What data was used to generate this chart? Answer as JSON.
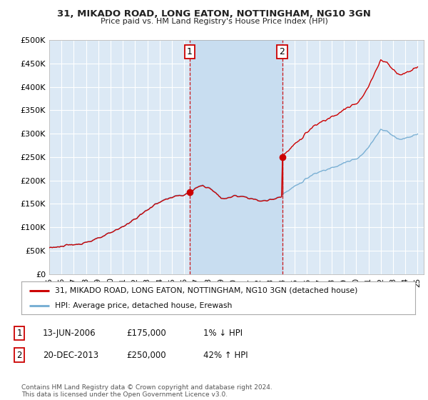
{
  "title": "31, MIKADO ROAD, LONG EATON, NOTTINGHAM, NG10 3GN",
  "subtitle": "Price paid vs. HM Land Registry's House Price Index (HPI)",
  "ylabel_ticks": [
    "£0",
    "£50K",
    "£100K",
    "£150K",
    "£200K",
    "£250K",
    "£300K",
    "£350K",
    "£400K",
    "£450K",
    "£500K"
  ],
  "ytick_values": [
    0,
    50000,
    100000,
    150000,
    200000,
    250000,
    300000,
    350000,
    400000,
    450000,
    500000
  ],
  "ylim": [
    0,
    500000
  ],
  "xlim_start": 1995.0,
  "xlim_end": 2025.5,
  "background_color": "#ffffff",
  "plot_bg_color": "#dce9f5",
  "shade_color": "#c8ddf0",
  "grid_color": "#ffffff",
  "hpi_color": "#7ab0d4",
  "property_color": "#cc0000",
  "sale1_x": 2006.45,
  "sale1_y": 175000,
  "sale2_x": 2013.97,
  "sale2_y": 250000,
  "legend_property": "31, MIKADO ROAD, LONG EATON, NOTTINGHAM, NG10 3GN (detached house)",
  "legend_hpi": "HPI: Average price, detached house, Erewash",
  "annotation1_label": "1",
  "annotation2_label": "2",
  "table_row1": [
    "1",
    "13-JUN-2006",
    "£175,000",
    "1% ↓ HPI"
  ],
  "table_row2": [
    "2",
    "20-DEC-2013",
    "£250,000",
    "42% ↑ HPI"
  ],
  "footnote": "Contains HM Land Registry data © Crown copyright and database right 2024.\nThis data is licensed under the Open Government Licence v3.0.",
  "xtick_years": [
    1995,
    1996,
    1997,
    1998,
    1999,
    2000,
    2001,
    2002,
    2003,
    2004,
    2005,
    2006,
    2007,
    2008,
    2009,
    2010,
    2011,
    2012,
    2013,
    2014,
    2015,
    2016,
    2017,
    2018,
    2019,
    2020,
    2021,
    2022,
    2023,
    2024,
    2025
  ]
}
